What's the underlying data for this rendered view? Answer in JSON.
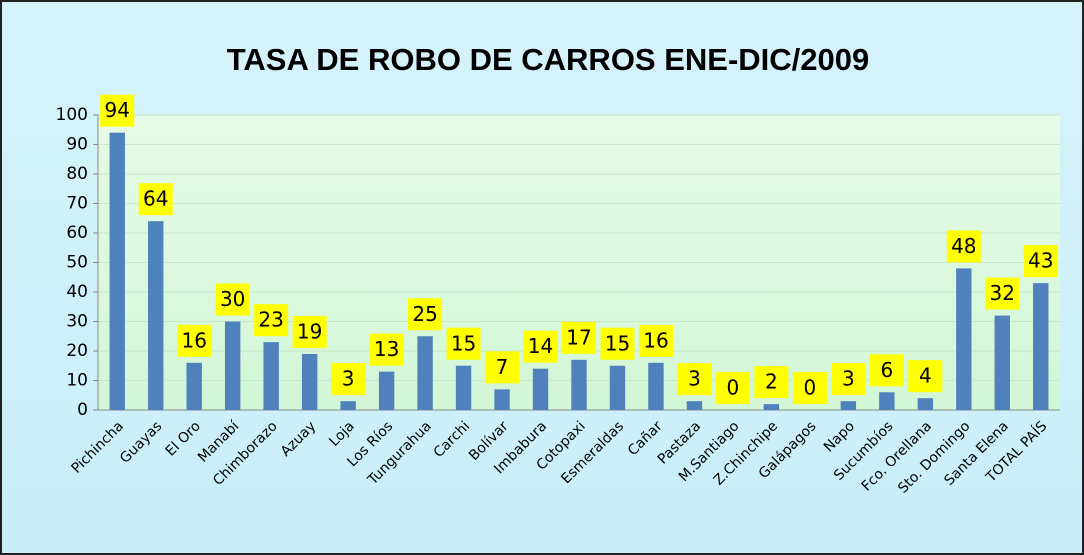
{
  "chart_data": {
    "type": "bar",
    "title": "TASA DE ROBO DE CARROS ENE-DIC/2009",
    "categories": [
      "Pichincha",
      "Guayas",
      "El Oro",
      "Manabí",
      "Chimborazo",
      "Azuay",
      "Loja",
      "Los Ríos",
      "Tungurahua",
      "Carchi",
      "Bolívar",
      "Imbabura",
      "Cotopaxi",
      "Esmeraldas",
      "Cañar",
      "Pastaza",
      "M.Santiago",
      "Z.Chinchipe",
      "Galápagos",
      "Napo",
      "Sucumbíos",
      "Fco. Orellana",
      "Sto. Domingo",
      "Santa Elena",
      "TOTAL PAÍS"
    ],
    "values": [
      94,
      64,
      16,
      30,
      23,
      19,
      3,
      13,
      25,
      15,
      7,
      14,
      17,
      15,
      16,
      3,
      0,
      2,
      0,
      3,
      6,
      4,
      48,
      32,
      43
    ],
    "color": "#4f81bd",
    "ylim": [
      0,
      100
    ],
    "yticks": [
      0,
      10,
      20,
      30,
      40,
      50,
      60,
      70,
      80,
      90,
      100
    ],
    "grid": true
  }
}
